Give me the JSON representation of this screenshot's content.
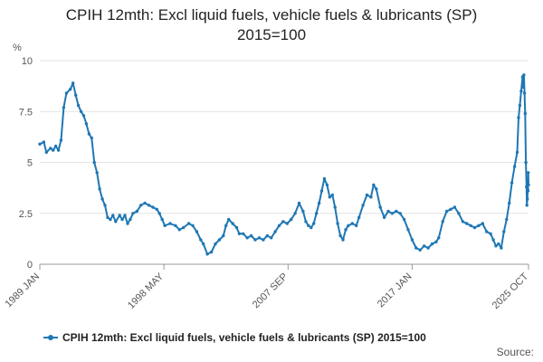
{
  "chart_data": {
    "type": "line",
    "title_line1": "CPIH 12mth: Excl liquid fuels, vehicle fuels & lubricants (SP)",
    "title_line2": "2015=100",
    "ylabel": "%",
    "ylim": [
      0,
      10
    ],
    "yticks": [
      "0",
      "2.5",
      "5",
      "7.5",
      "10"
    ],
    "ytick_values": [
      0,
      2.5,
      5,
      7.5,
      10
    ],
    "xlim": [
      1989.0,
      2025.75
    ],
    "xticks": [
      {
        "label": "1989 JAN",
        "x": 1989.0
      },
      {
        "label": "1998 MAY",
        "x": 1998.33
      },
      {
        "label": "2007 SEP",
        "x": 2007.67
      },
      {
        "label": "2017 JAN",
        "x": 2017.0
      },
      {
        "label": "2025 OCT",
        "x": 2025.75
      }
    ],
    "grid": true,
    "legend_position": "bottom",
    "series": [
      {
        "name": "CPIH 12mth: Excl liquid fuels, vehicle fuels & lubricants (SP) 2015=100",
        "color": "#1f77b4",
        "points": [
          [
            1989.0,
            5.9
          ],
          [
            1989.3,
            6.0
          ],
          [
            1989.5,
            5.5
          ],
          [
            1989.8,
            5.7
          ],
          [
            1990.0,
            5.6
          ],
          [
            1990.2,
            5.8
          ],
          [
            1990.4,
            5.6
          ],
          [
            1990.6,
            6.1
          ],
          [
            1990.8,
            7.7
          ],
          [
            1991.0,
            8.4
          ],
          [
            1991.3,
            8.6
          ],
          [
            1991.5,
            8.9
          ],
          [
            1991.7,
            8.3
          ],
          [
            1991.9,
            7.8
          ],
          [
            1992.1,
            7.5
          ],
          [
            1992.3,
            7.3
          ],
          [
            1992.5,
            6.9
          ],
          [
            1992.7,
            6.4
          ],
          [
            1992.9,
            6.2
          ],
          [
            1993.1,
            5.0
          ],
          [
            1993.3,
            4.5
          ],
          [
            1993.5,
            3.7
          ],
          [
            1993.7,
            3.2
          ],
          [
            1993.9,
            2.9
          ],
          [
            1994.1,
            2.3
          ],
          [
            1994.3,
            2.2
          ],
          [
            1994.5,
            2.4
          ],
          [
            1994.7,
            2.1
          ],
          [
            1995.0,
            2.4
          ],
          [
            1995.2,
            2.2
          ],
          [
            1995.4,
            2.4
          ],
          [
            1995.6,
            2.0
          ],
          [
            1995.8,
            2.2
          ],
          [
            1996.0,
            2.5
          ],
          [
            1996.3,
            2.6
          ],
          [
            1996.6,
            2.9
          ],
          [
            1996.9,
            3.0
          ],
          [
            1997.2,
            2.9
          ],
          [
            1997.5,
            2.8
          ],
          [
            1997.8,
            2.7
          ],
          [
            1998.0,
            2.5
          ],
          [
            1998.2,
            2.2
          ],
          [
            1998.4,
            1.9
          ],
          [
            1998.8,
            2.0
          ],
          [
            1999.2,
            1.9
          ],
          [
            1999.5,
            1.7
          ],
          [
            1999.8,
            1.8
          ],
          [
            2000.2,
            2.0
          ],
          [
            2000.5,
            1.9
          ],
          [
            2000.8,
            1.6
          ],
          [
            2001.1,
            1.2
          ],
          [
            2001.3,
            1.0
          ],
          [
            2001.6,
            0.5
          ],
          [
            2001.9,
            0.6
          ],
          [
            2002.2,
            1.0
          ],
          [
            2002.5,
            1.2
          ],
          [
            2002.8,
            1.4
          ],
          [
            2003.0,
            1.9
          ],
          [
            2003.2,
            2.2
          ],
          [
            2003.5,
            2.0
          ],
          [
            2003.8,
            1.8
          ],
          [
            2004.0,
            1.5
          ],
          [
            2004.3,
            1.5
          ],
          [
            2004.6,
            1.3
          ],
          [
            2004.9,
            1.4
          ],
          [
            2005.2,
            1.2
          ],
          [
            2005.5,
            1.3
          ],
          [
            2005.8,
            1.2
          ],
          [
            2006.1,
            1.4
          ],
          [
            2006.4,
            1.3
          ],
          [
            2006.7,
            1.6
          ],
          [
            2007.0,
            1.9
          ],
          [
            2007.3,
            2.1
          ],
          [
            2007.6,
            2.0
          ],
          [
            2007.9,
            2.2
          ],
          [
            2008.2,
            2.5
          ],
          [
            2008.5,
            3.0
          ],
          [
            2008.8,
            2.6
          ],
          [
            2009.0,
            2.1
          ],
          [
            2009.2,
            1.9
          ],
          [
            2009.4,
            1.8
          ],
          [
            2009.6,
            2.0
          ],
          [
            2009.8,
            2.5
          ],
          [
            2010.0,
            3.0
          ],
          [
            2010.2,
            3.6
          ],
          [
            2010.4,
            4.2
          ],
          [
            2010.6,
            3.9
          ],
          [
            2010.8,
            3.3
          ],
          [
            2011.0,
            3.4
          ],
          [
            2011.2,
            2.8
          ],
          [
            2011.4,
            2.0
          ],
          [
            2011.6,
            1.4
          ],
          [
            2011.8,
            1.2
          ],
          [
            2012.0,
            1.7
          ],
          [
            2012.2,
            1.9
          ],
          [
            2012.5,
            2.0
          ],
          [
            2012.8,
            1.9
          ],
          [
            2013.0,
            2.3
          ],
          [
            2013.3,
            2.9
          ],
          [
            2013.6,
            3.4
          ],
          [
            2013.9,
            3.3
          ],
          [
            2014.1,
            3.9
          ],
          [
            2014.3,
            3.7
          ],
          [
            2014.6,
            2.8
          ],
          [
            2014.9,
            2.3
          ],
          [
            2015.2,
            2.6
          ],
          [
            2015.5,
            2.5
          ],
          [
            2015.8,
            2.6
          ],
          [
            2016.1,
            2.5
          ],
          [
            2016.4,
            2.2
          ],
          [
            2016.7,
            1.7
          ],
          [
            2017.0,
            1.2
          ],
          [
            2017.3,
            0.8
          ],
          [
            2017.6,
            0.7
          ],
          [
            2017.9,
            0.9
          ],
          [
            2018.2,
            0.8
          ],
          [
            2018.5,
            1.0
          ],
          [
            2018.8,
            1.1
          ],
          [
            2019.0,
            1.3
          ],
          [
            2019.3,
            2.1
          ],
          [
            2019.6,
            2.6
          ],
          [
            2019.9,
            2.7
          ],
          [
            2020.2,
            2.8
          ],
          [
            2020.5,
            2.5
          ],
          [
            2020.8,
            2.1
          ],
          [
            2021.1,
            2.0
          ],
          [
            2021.4,
            1.9
          ],
          [
            2021.7,
            1.8
          ],
          [
            2022.0,
            1.9
          ],
          [
            2022.3,
            2.0
          ],
          [
            2022.6,
            1.6
          ],
          [
            2022.9,
            1.5
          ],
          [
            2023.1,
            1.2
          ],
          [
            2023.3,
            0.9
          ],
          [
            2023.5,
            1.0
          ],
          [
            2023.7,
            0.8
          ],
          [
            2023.9,
            1.6
          ],
          [
            2024.1,
            2.2
          ],
          [
            2024.3,
            3.0
          ],
          [
            2024.5,
            4.0
          ],
          [
            2024.7,
            4.8
          ],
          [
            2024.9,
            5.5
          ],
          [
            2025.0,
            7.2
          ],
          [
            2025.1,
            7.8
          ],
          [
            2025.2,
            8.5
          ],
          [
            2025.3,
            9.2
          ],
          [
            2025.35,
            8.7
          ],
          [
            2025.4,
            9.3
          ],
          [
            2025.45,
            8.4
          ],
          [
            2025.5,
            7.4
          ],
          [
            2025.55,
            5.0
          ],
          [
            2025.6,
            3.8
          ],
          [
            2025.63,
            2.9
          ],
          [
            2025.66,
            3.2
          ],
          [
            2025.69,
            3.7
          ],
          [
            2025.71,
            3.6
          ],
          [
            2025.73,
            4.5
          ],
          [
            2025.75,
            3.9
          ]
        ]
      }
    ],
    "source_label": "Source:"
  }
}
